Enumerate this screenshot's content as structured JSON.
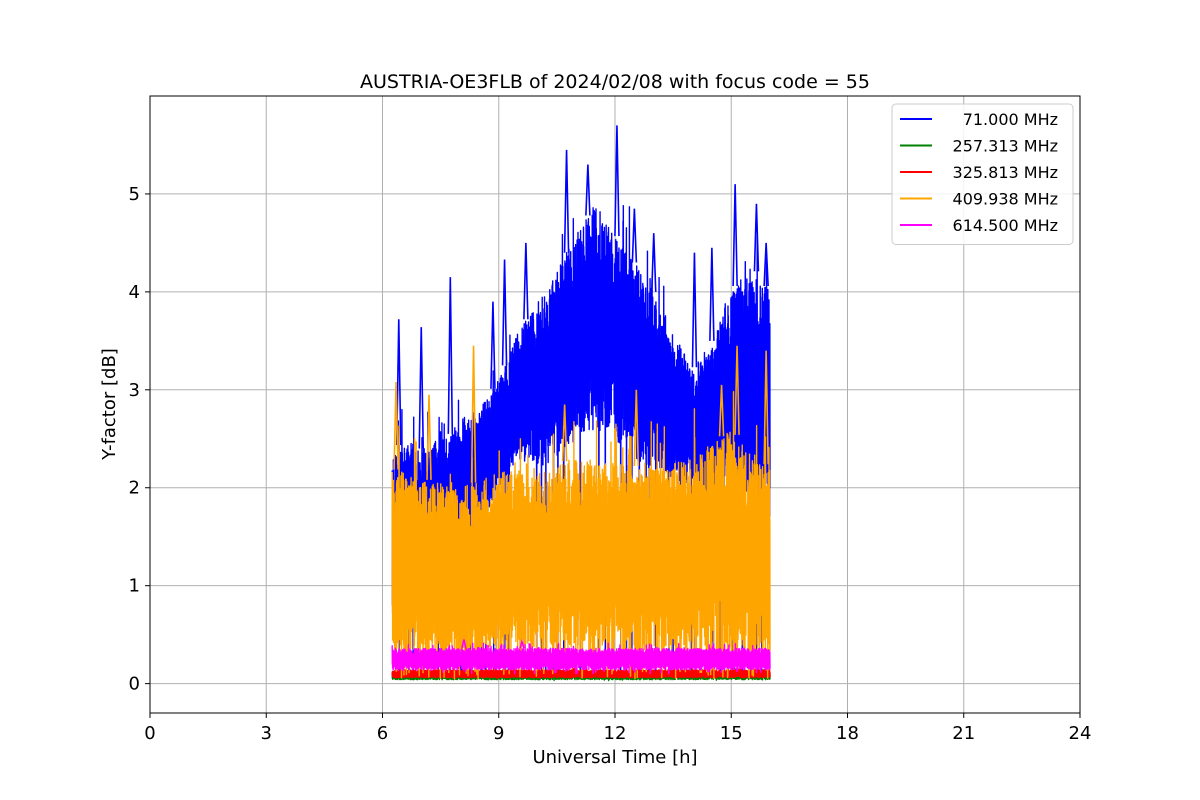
{
  "chart_data": {
    "type": "line",
    "title": "AUSTRIA-OE3FLB of 2024/02/08 with focus code = 55",
    "xlabel": "Universal Time [h]",
    "ylabel": "Y-factor [dB]",
    "xlim": [
      0,
      24
    ],
    "ylim": [
      -0.3,
      6.0
    ],
    "xticks": [
      0,
      3,
      6,
      9,
      12,
      15,
      18,
      21,
      24
    ],
    "yticks": [
      0,
      1,
      2,
      3,
      4,
      5
    ],
    "grid": true,
    "legend_position": "top-right",
    "x_range_data": [
      6.25,
      16.0
    ],
    "series": [
      {
        "name": "71.000 MHz",
        "color": "#0000ff",
        "envelope": {
          "x": [
            6.25,
            6.5,
            7.0,
            7.5,
            8.0,
            8.5,
            9.0,
            9.5,
            10.0,
            10.5,
            11.0,
            11.5,
            12.0,
            12.5,
            13.0,
            13.5,
            14.0,
            14.5,
            15.0,
            15.5,
            16.0
          ],
          "upper": [
            2.3,
            2.5,
            2.4,
            2.5,
            2.6,
            2.8,
            3.1,
            3.6,
            3.9,
            4.2,
            4.6,
            4.9,
            4.6,
            4.3,
            4.0,
            3.6,
            3.2,
            3.5,
            4.0,
            4.3,
            4.0
          ],
          "lower": [
            0.6,
            0.9,
            1.0,
            1.2,
            1.4,
            1.6,
            2.0,
            2.3,
            2.2,
            2.3,
            2.5,
            2.6,
            2.5,
            2.3,
            2.2,
            2.1,
            2.0,
            1.7,
            2.0,
            1.8,
            1.7
          ]
        },
        "spikes": [
          [
            6.42,
            3.72
          ],
          [
            7.0,
            3.64
          ],
          [
            7.75,
            4.15
          ],
          [
            8.85,
            3.9
          ],
          [
            9.15,
            4.33
          ],
          [
            9.7,
            4.5
          ],
          [
            10.75,
            5.45
          ],
          [
            11.3,
            5.3
          ],
          [
            12.05,
            5.7
          ],
          [
            12.5,
            4.85
          ],
          [
            13.0,
            4.6
          ],
          [
            14.05,
            4.4
          ],
          [
            14.5,
            4.45
          ],
          [
            15.1,
            5.1
          ],
          [
            15.65,
            4.9
          ],
          [
            15.9,
            4.5
          ]
        ],
        "floor": 0.05
      },
      {
        "name": "257.313 MHz",
        "color": "#008000",
        "envelope": {
          "x": [
            6.25,
            16.0
          ],
          "upper": [
            0.12,
            0.12
          ],
          "lower": [
            0.04,
            0.04
          ]
        },
        "spikes": [],
        "floor": 0.03
      },
      {
        "name": "325.813 MHz",
        "color": "#ff0000",
        "envelope": {
          "x": [
            6.25,
            16.0
          ],
          "upper": [
            0.14,
            0.14
          ],
          "lower": [
            0.06,
            0.06
          ]
        },
        "spikes": [],
        "floor": 0.05
      },
      {
        "name": "409.938 MHz",
        "color": "#ffa500",
        "envelope": {
          "x": [
            6.25,
            7.0,
            8.0,
            9.0,
            10.0,
            11.0,
            12.0,
            13.0,
            14.0,
            15.0,
            16.0
          ],
          "upper": [
            2.2,
            2.1,
            2.0,
            2.15,
            2.2,
            2.3,
            2.25,
            2.2,
            2.3,
            2.6,
            2.2
          ],
          "lower": [
            0.3,
            0.3,
            0.3,
            0.3,
            0.3,
            0.3,
            0.3,
            0.3,
            0.3,
            0.3,
            0.3
          ]
        },
        "spikes": [
          [
            6.35,
            3.08
          ],
          [
            7.2,
            2.95
          ],
          [
            8.35,
            3.45
          ],
          [
            10.7,
            2.85
          ],
          [
            12.55,
            3.0
          ],
          [
            14.75,
            3.05
          ],
          [
            15.15,
            3.45
          ],
          [
            15.9,
            3.4
          ]
        ],
        "floor": 0.05
      },
      {
        "name": "614.500 MHz",
        "color": "#ff00ff",
        "envelope": {
          "x": [
            6.25,
            16.0
          ],
          "upper": [
            0.36,
            0.36
          ],
          "lower": [
            0.14,
            0.14
          ]
        },
        "spikes": [
          [
            8.1,
            0.45
          ],
          [
            9.6,
            0.43
          ]
        ],
        "floor": 0.1
      }
    ]
  }
}
